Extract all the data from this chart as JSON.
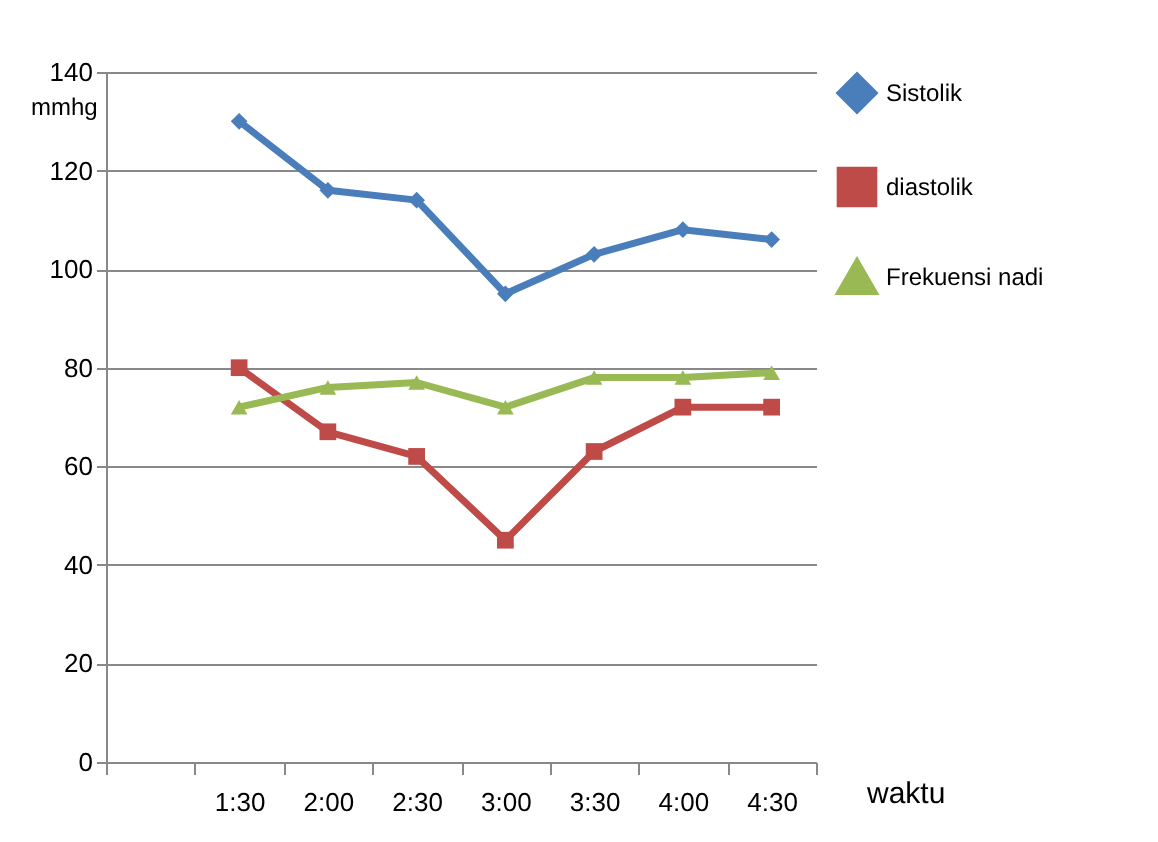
{
  "chart_data": {
    "type": "line",
    "xlabel": "waktu",
    "ylabel": "mmhg",
    "categories": [
      null,
      "1:30",
      "2:00",
      "2:30",
      "3:00",
      "3:30",
      "4:00",
      "4:30"
    ],
    "series": [
      {
        "name": "Sistolik",
        "color": "#4a7ebb",
        "marker": "diamond",
        "values": [
          null,
          130,
          116,
          114,
          95,
          103,
          108,
          106
        ]
      },
      {
        "name": "diastolik",
        "color": "#be4b48",
        "marker": "square",
        "values": [
          null,
          80,
          67,
          62,
          45,
          63,
          72,
          72
        ]
      },
      {
        "name": "Frekuensi nadi",
        "color": "#98b954",
        "marker": "triangle",
        "values": [
          null,
          72,
          76,
          77,
          72,
          78,
          78,
          79
        ]
      }
    ],
    "ylim": [
      0,
      140
    ],
    "yticks": [
      0,
      20,
      40,
      60,
      80,
      100,
      120,
      140
    ],
    "grid": "y",
    "legend": "right"
  }
}
